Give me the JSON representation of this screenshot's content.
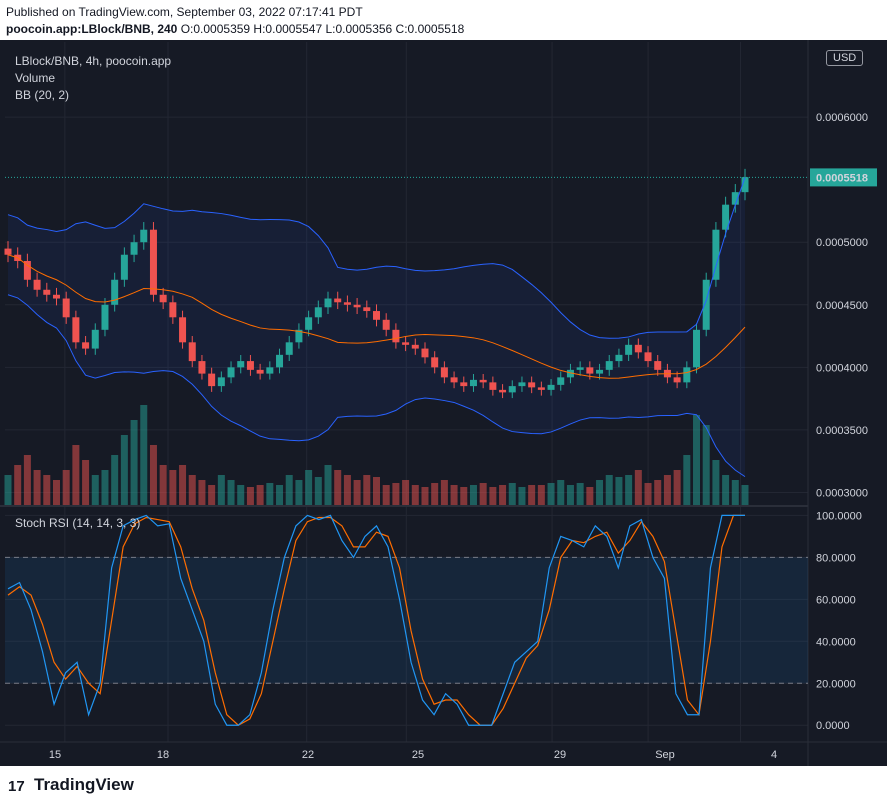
{
  "header": {
    "published": "Published on TradingView.com, September 03, 2022 07:17:41 PDT",
    "symbol": "poocoin.app:LBlock/BNB, 240",
    "ohlc": "O:0.0005359 H:0.0005547 L:0.0005356 C:0.0005518"
  },
  "legend": {
    "title": "LBlock/BNB, 4h, poocoin.app",
    "volume": "Volume",
    "bb": "BB (20, 2)",
    "stoch": "Stoch RSI (14, 14, 3, 3)"
  },
  "currency_button": "USD",
  "footer": {
    "brand": "TradingView",
    "logo": "17"
  },
  "colors": {
    "background": "#161a25",
    "up": "#26a69a",
    "down": "#ef5350",
    "bb_band": "#2962ff",
    "bb_basis": "#ff6d00",
    "k_line": "#2196f3",
    "d_line": "#ff6d00",
    "last_price_bg": "#26a69a"
  },
  "chart_data": [
    {
      "type": "candlestick",
      "title": "LBlock/BNB, 4h, poocoin.app",
      "x_ticks": [
        "15",
        "18",
        "22",
        "25",
        "29",
        "Sep",
        "4"
      ],
      "y_ticks": [
        "0.0003000",
        "0.0003500",
        "0.0004000",
        "0.0004500",
        "0.0005000",
        "0.0006000"
      ],
      "ylim": [
        0.00029,
        0.00066
      ],
      "last_price": "0.0005518",
      "series": [
        {
          "name": "Price (close)",
          "values": [
            0.00049,
            0.000485,
            0.00047,
            0.000462,
            0.000458,
            0.000455,
            0.00044,
            0.00042,
            0.000415,
            0.00043,
            0.00045,
            0.00047,
            0.00049,
            0.0005,
            0.00051,
            0.000458,
            0.000452,
            0.00044,
            0.00042,
            0.000405,
            0.000395,
            0.000385,
            0.000392,
            0.0004,
            0.000405,
            0.000398,
            0.000395,
            0.0004,
            0.00041,
            0.00042,
            0.00043,
            0.00044,
            0.000448,
            0.000455,
            0.000452,
            0.00045,
            0.000448,
            0.000445,
            0.000438,
            0.00043,
            0.00042,
            0.000418,
            0.000415,
            0.000408,
            0.0004,
            0.000392,
            0.000388,
            0.000385,
            0.00039,
            0.000388,
            0.000382,
            0.00038,
            0.000385,
            0.000388,
            0.000384,
            0.000382,
            0.000386,
            0.000392,
            0.000398,
            0.0004,
            0.000395,
            0.000398,
            0.000405,
            0.00041,
            0.000418,
            0.000412,
            0.000405,
            0.000398,
            0.000392,
            0.000388,
            0.0004,
            0.00043,
            0.00047,
            0.00051,
            0.00053,
            0.00054,
            0.000552
          ]
        },
        {
          "name": "Volume (relative)",
          "values": [
            0.3,
            0.4,
            0.5,
            0.35,
            0.3,
            0.25,
            0.35,
            0.6,
            0.45,
            0.3,
            0.35,
            0.5,
            0.7,
            0.85,
            1.0,
            0.6,
            0.4,
            0.35,
            0.4,
            0.3,
            0.25,
            0.2,
            0.3,
            0.25,
            0.2,
            0.18,
            0.2,
            0.22,
            0.2,
            0.3,
            0.25,
            0.35,
            0.28,
            0.4,
            0.35,
            0.3,
            0.25,
            0.3,
            0.28,
            0.2,
            0.22,
            0.25,
            0.2,
            0.18,
            0.22,
            0.25,
            0.2,
            0.18,
            0.2,
            0.22,
            0.18,
            0.2,
            0.22,
            0.18,
            0.2,
            0.2,
            0.22,
            0.25,
            0.2,
            0.22,
            0.18,
            0.25,
            0.3,
            0.28,
            0.3,
            0.35,
            0.22,
            0.25,
            0.3,
            0.35,
            0.5,
            0.9,
            0.8,
            0.45,
            0.3,
            0.25,
            0.2
          ]
        }
      ]
    },
    {
      "type": "line",
      "title": "Stoch RSI (14, 14, 3, 3)",
      "y_ticks": [
        "100.0000",
        "80.0000",
        "60.0000",
        "40.0000",
        "20.0000",
        "0.0000"
      ],
      "ylim": [
        -8,
        104
      ],
      "bands": [
        20,
        80
      ],
      "series": [
        {
          "name": "K",
          "values": [
            65,
            68,
            55,
            35,
            10,
            25,
            30,
            5,
            20,
            75,
            95,
            98,
            100,
            95,
            96,
            70,
            55,
            40,
            10,
            0,
            0,
            5,
            25,
            55,
            80,
            95,
            100,
            98,
            100,
            88,
            80,
            90,
            95,
            85,
            60,
            30,
            12,
            5,
            15,
            10,
            0,
            0,
            0,
            15,
            30,
            35,
            40,
            75,
            90,
            88,
            85,
            95,
            90,
            75,
            95,
            98,
            80,
            70,
            15,
            5,
            5,
            75,
            100,
            100,
            100
          ]
        },
        {
          "name": "D",
          "values": [
            62,
            66,
            62,
            48,
            30,
            22,
            28,
            20,
            15,
            50,
            85,
            96,
            99,
            98,
            97,
            85,
            65,
            50,
            25,
            5,
            0,
            3,
            15,
            40,
            65,
            88,
            97,
            99,
            99,
            95,
            85,
            85,
            92,
            90,
            75,
            45,
            22,
            10,
            12,
            12,
            5,
            0,
            0,
            8,
            20,
            32,
            38,
            55,
            80,
            88,
            87,
            90,
            92,
            82,
            88,
            97,
            90,
            78,
            45,
            12,
            5,
            40,
            85,
            100,
            100
          ]
        }
      ]
    }
  ]
}
